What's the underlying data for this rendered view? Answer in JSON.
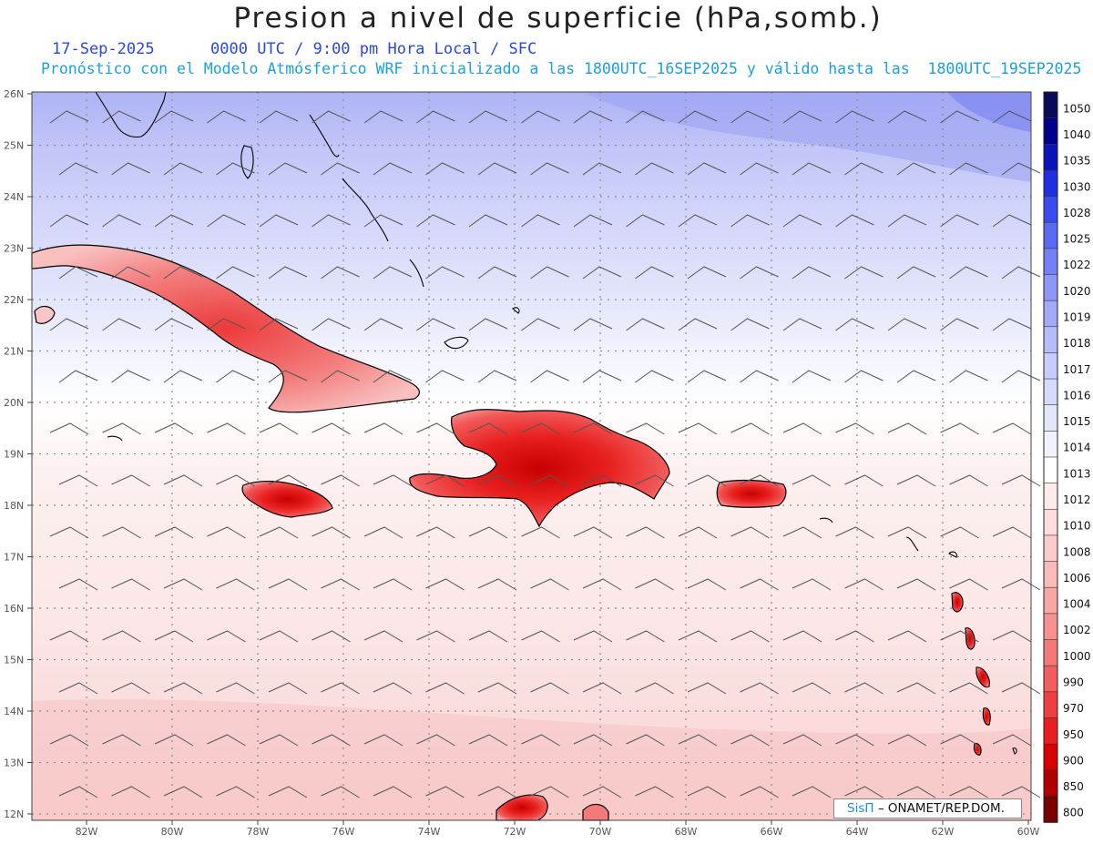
{
  "title": "Presion a nivel de superficie (hPa,somb.)",
  "date": "17-Sep-2025",
  "time_label": "0000 UTC / 9:00 pm Hora Local / SFC",
  "forecast_note": "Pronóstico con el Modelo Atmósferico WRF inicializado a las 1800UTC_16SEP2025 y válido hasta las  1800UTC_19SEP2025",
  "lat_labels": [
    "26N",
    "25N",
    "24N",
    "23N",
    "22N",
    "21N",
    "20N",
    "19N",
    "18N",
    "17N",
    "16N",
    "15N",
    "14N",
    "13N",
    "12N"
  ],
  "lon_labels": [
    "82W",
    "80W",
    "78W",
    "76W",
    "74W",
    "72W",
    "70W",
    "68W",
    "66W",
    "64W",
    "62W",
    "60W"
  ],
  "colorbar": {
    "levels": [
      "1050",
      "1040",
      "1035",
      "1030",
      "1028",
      "1025",
      "1022",
      "1020",
      "1019",
      "1018",
      "1017",
      "1016",
      "1015",
      "1014",
      "1013",
      "1012",
      "1010",
      "1008",
      "1006",
      "1004",
      "1002",
      "1000",
      "990",
      "970",
      "950",
      "900",
      "850",
      "800"
    ],
    "colors": [
      "#0a0a5a",
      "#00008a",
      "#0a14b8",
      "#1e2ee0",
      "#3a4bf0",
      "#5a6af5",
      "#7580f7",
      "#8e97f8",
      "#a3aaf8",
      "#b6bcf9",
      "#c7ccfa",
      "#d6dafb",
      "#e4e7fc",
      "#f1f2fe",
      "#ffffff",
      "#fdeaea",
      "#fcdcdc",
      "#fbcccc",
      "#f9baba",
      "#f8a6a6",
      "#f79090",
      "#f57878",
      "#f25e5e",
      "#ee4040",
      "#ea2020",
      "#d80000",
      "#b00000",
      "#7a0000"
    ]
  },
  "credit": {
    "sis": "SisΠ",
    "org": "– ONAMET/REP.DOM."
  },
  "colors": {
    "ocean_north": "#b0b4f6",
    "ocean_mid": "#f3f3fd",
    "ocean_south": "#fde6e6",
    "land_high": "#e81010"
  }
}
